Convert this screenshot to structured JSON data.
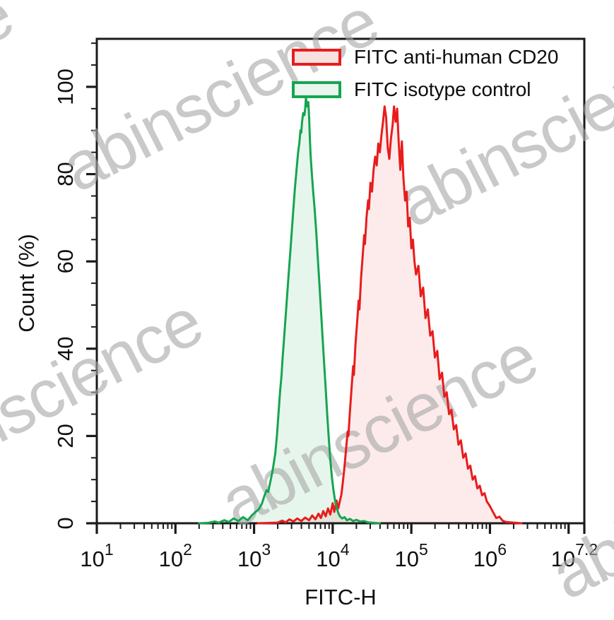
{
  "watermark": {
    "text": "abinscience"
  },
  "chart_data": {
    "type": "area",
    "title": "",
    "xlabel": "FITC-H",
    "ylabel": "Count (%)",
    "x_scale": "log10",
    "xlim_log": [
      1,
      7.2
    ],
    "ylim": [
      0,
      111
    ],
    "grid": false,
    "legend_position": "top-right",
    "x_ticks": [
      {
        "log": 1,
        "base": "10",
        "exp": "1"
      },
      {
        "log": 2,
        "base": "10",
        "exp": "2"
      },
      {
        "log": 3,
        "base": "10",
        "exp": "3"
      },
      {
        "log": 4,
        "base": "10",
        "exp": "4"
      },
      {
        "log": 5,
        "base": "10",
        "exp": "5"
      },
      {
        "log": 6,
        "base": "10",
        "exp": "6"
      },
      {
        "log": 7,
        "base": "",
        "exp": ""
      },
      {
        "log": 7.2,
        "base": "10",
        "exp": "7.2"
      }
    ],
    "y_ticks": [
      {
        "value": 0,
        "label": "0"
      },
      {
        "value": 20,
        "label": "20"
      },
      {
        "value": 40,
        "label": "40"
      },
      {
        "value": 60,
        "label": "60"
      },
      {
        "value": 80,
        "label": "80"
      },
      {
        "value": 100,
        "label": "100"
      }
    ],
    "y_minor_step": 5,
    "series": [
      {
        "name": "FITC anti-human CD20",
        "color": "#e81c1c",
        "fill": "rgba(240,60,60,0.10)",
        "legend_fill": "#f9e0e0",
        "points": [
          [
            3.05,
            0
          ],
          [
            3.3,
            0.15
          ],
          [
            3.36,
            0.6
          ],
          [
            3.4,
            0.2
          ],
          [
            3.45,
            0.9
          ],
          [
            3.5,
            0.4
          ],
          [
            3.55,
            1.1
          ],
          [
            3.6,
            0.5
          ],
          [
            3.65,
            1.3
          ],
          [
            3.7,
            0.7
          ],
          [
            3.74,
            1.8
          ],
          [
            3.78,
            0.9
          ],
          [
            3.82,
            2.2
          ],
          [
            3.85,
            1.2
          ],
          [
            3.88,
            2.8
          ],
          [
            3.91,
            1.6
          ],
          [
            3.94,
            3.4
          ],
          [
            3.97,
            2.0
          ],
          [
            4.0,
            4.6
          ],
          [
            4.02,
            2.6
          ],
          [
            4.05,
            5.2
          ],
          [
            4.07,
            3.4
          ],
          [
            4.09,
            5.0
          ],
          [
            4.11,
            6.5
          ],
          [
            4.13,
            9.5
          ],
          [
            4.15,
            13
          ],
          [
            4.17,
            17
          ],
          [
            4.19,
            21
          ],
          [
            4.2,
            20
          ],
          [
            4.22,
            26
          ],
          [
            4.24,
            31
          ],
          [
            4.26,
            36
          ],
          [
            4.27,
            34
          ],
          [
            4.29,
            41
          ],
          [
            4.31,
            46
          ],
          [
            4.33,
            51
          ],
          [
            4.34,
            49
          ],
          [
            4.36,
            56
          ],
          [
            4.38,
            61
          ],
          [
            4.4,
            66
          ],
          [
            4.41,
            64
          ],
          [
            4.43,
            70
          ],
          [
            4.45,
            74
          ],
          [
            4.46,
            72
          ],
          [
            4.48,
            78
          ],
          [
            4.5,
            76
          ],
          [
            4.52,
            81
          ],
          [
            4.54,
            84
          ],
          [
            4.56,
            82
          ],
          [
            4.58,
            87
          ],
          [
            4.6,
            85
          ],
          [
            4.62,
            89
          ],
          [
            4.64,
            92
          ],
          [
            4.66,
            95.5
          ],
          [
            4.68,
            93
          ],
          [
            4.7,
            86
          ],
          [
            4.72,
            83.5
          ],
          [
            4.74,
            88
          ],
          [
            4.76,
            91
          ],
          [
            4.78,
            95.5
          ],
          [
            4.8,
            92
          ],
          [
            4.82,
            95
          ],
          [
            4.84,
            87
          ],
          [
            4.86,
            81
          ],
          [
            4.88,
            87.5
          ],
          [
            4.9,
            79
          ],
          [
            4.92,
            74
          ],
          [
            4.94,
            76
          ],
          [
            4.96,
            68
          ],
          [
            4.98,
            70
          ],
          [
            5.0,
            63
          ],
          [
            5.02,
            65
          ],
          [
            5.04,
            60
          ],
          [
            5.06,
            57
          ],
          [
            5.09,
            59
          ],
          [
            5.12,
            52
          ],
          [
            5.15,
            54
          ],
          [
            5.18,
            47
          ],
          [
            5.21,
            49
          ],
          [
            5.24,
            43
          ],
          [
            5.27,
            44
          ],
          [
            5.3,
            38
          ],
          [
            5.33,
            39.5
          ],
          [
            5.36,
            33
          ],
          [
            5.39,
            34.5
          ],
          [
            5.42,
            29
          ],
          [
            5.45,
            30
          ],
          [
            5.48,
            25
          ],
          [
            5.51,
            26
          ],
          [
            5.54,
            21.5
          ],
          [
            5.57,
            22.5
          ],
          [
            5.6,
            18
          ],
          [
            5.63,
            19
          ],
          [
            5.66,
            15
          ],
          [
            5.69,
            16
          ],
          [
            5.72,
            12.5
          ],
          [
            5.75,
            13.2
          ],
          [
            5.78,
            10
          ],
          [
            5.81,
            10.8
          ],
          [
            5.84,
            8
          ],
          [
            5.87,
            8.6
          ],
          [
            5.9,
            6.4
          ],
          [
            5.93,
            6.9
          ],
          [
            5.96,
            5
          ],
          [
            5.99,
            4.2
          ],
          [
            6.02,
            3.2
          ],
          [
            6.05,
            2.2
          ],
          [
            6.08,
            1.2
          ],
          [
            6.12,
            1.5
          ],
          [
            6.16,
            0.6
          ],
          [
            6.2,
            0.3
          ],
          [
            6.3,
            0.15
          ],
          [
            6.4,
            0
          ]
        ]
      },
      {
        "name": "FITC isotype control",
        "color": "#14a551",
        "fill": "rgba(20,165,81,0.10)",
        "legend_fill": "#e9f5ee",
        "points": [
          [
            2.3,
            0
          ],
          [
            2.42,
            0.1
          ],
          [
            2.5,
            0.4
          ],
          [
            2.55,
            0.15
          ],
          [
            2.62,
            0.7
          ],
          [
            2.68,
            0.3
          ],
          [
            2.74,
            1.1
          ],
          [
            2.8,
            0.5
          ],
          [
            2.86,
            1.4
          ],
          [
            2.92,
            0.7
          ],
          [
            2.97,
            1.8
          ],
          [
            3.02,
            2.6
          ],
          [
            3.06,
            3.2
          ],
          [
            3.1,
            4.5
          ],
          [
            3.13,
            6.2
          ],
          [
            3.16,
            7.6
          ],
          [
            3.18,
            7.2
          ],
          [
            3.21,
            9.8
          ],
          [
            3.24,
            12.5
          ],
          [
            3.27,
            16
          ],
          [
            3.29,
            20
          ],
          [
            3.31,
            25
          ],
          [
            3.33,
            30
          ],
          [
            3.35,
            34
          ],
          [
            3.36,
            37
          ],
          [
            3.38,
            42
          ],
          [
            3.4,
            47
          ],
          [
            3.42,
            52
          ],
          [
            3.44,
            57
          ],
          [
            3.46,
            62
          ],
          [
            3.48,
            67
          ],
          [
            3.5,
            72
          ],
          [
            3.52,
            77
          ],
          [
            3.54,
            81
          ],
          [
            3.56,
            85
          ],
          [
            3.575,
            87
          ],
          [
            3.59,
            90
          ],
          [
            3.6,
            89.5
          ],
          [
            3.61,
            92
          ],
          [
            3.625,
            94
          ],
          [
            3.64,
            93.5
          ],
          [
            3.65,
            95
          ],
          [
            3.66,
            97.5
          ],
          [
            3.675,
            95.5
          ],
          [
            3.69,
            96.5
          ],
          [
            3.7,
            93
          ],
          [
            3.71,
            88
          ],
          [
            3.72,
            84
          ],
          [
            3.735,
            80
          ],
          [
            3.75,
            76.5
          ],
          [
            3.77,
            72
          ],
          [
            3.79,
            67
          ],
          [
            3.81,
            61
          ],
          [
            3.83,
            55
          ],
          [
            3.85,
            49
          ],
          [
            3.87,
            43
          ],
          [
            3.89,
            37
          ],
          [
            3.91,
            31
          ],
          [
            3.93,
            25
          ],
          [
            3.95,
            19.5
          ],
          [
            3.97,
            14.5
          ],
          [
            3.99,
            10.5
          ],
          [
            4.01,
            7.5
          ],
          [
            4.03,
            5.2
          ],
          [
            4.05,
            3.6
          ],
          [
            4.07,
            2.4
          ],
          [
            4.09,
            1.6
          ],
          [
            4.12,
            1.1
          ],
          [
            4.15,
            1.4
          ],
          [
            4.18,
            0.7
          ],
          [
            4.22,
            1.0
          ],
          [
            4.26,
            0.5
          ],
          [
            4.3,
            0.8
          ],
          [
            4.35,
            0.4
          ],
          [
            4.4,
            0.5
          ],
          [
            4.45,
            0.2
          ],
          [
            4.52,
            0.1
          ],
          [
            4.6,
            0
          ]
        ]
      }
    ]
  }
}
